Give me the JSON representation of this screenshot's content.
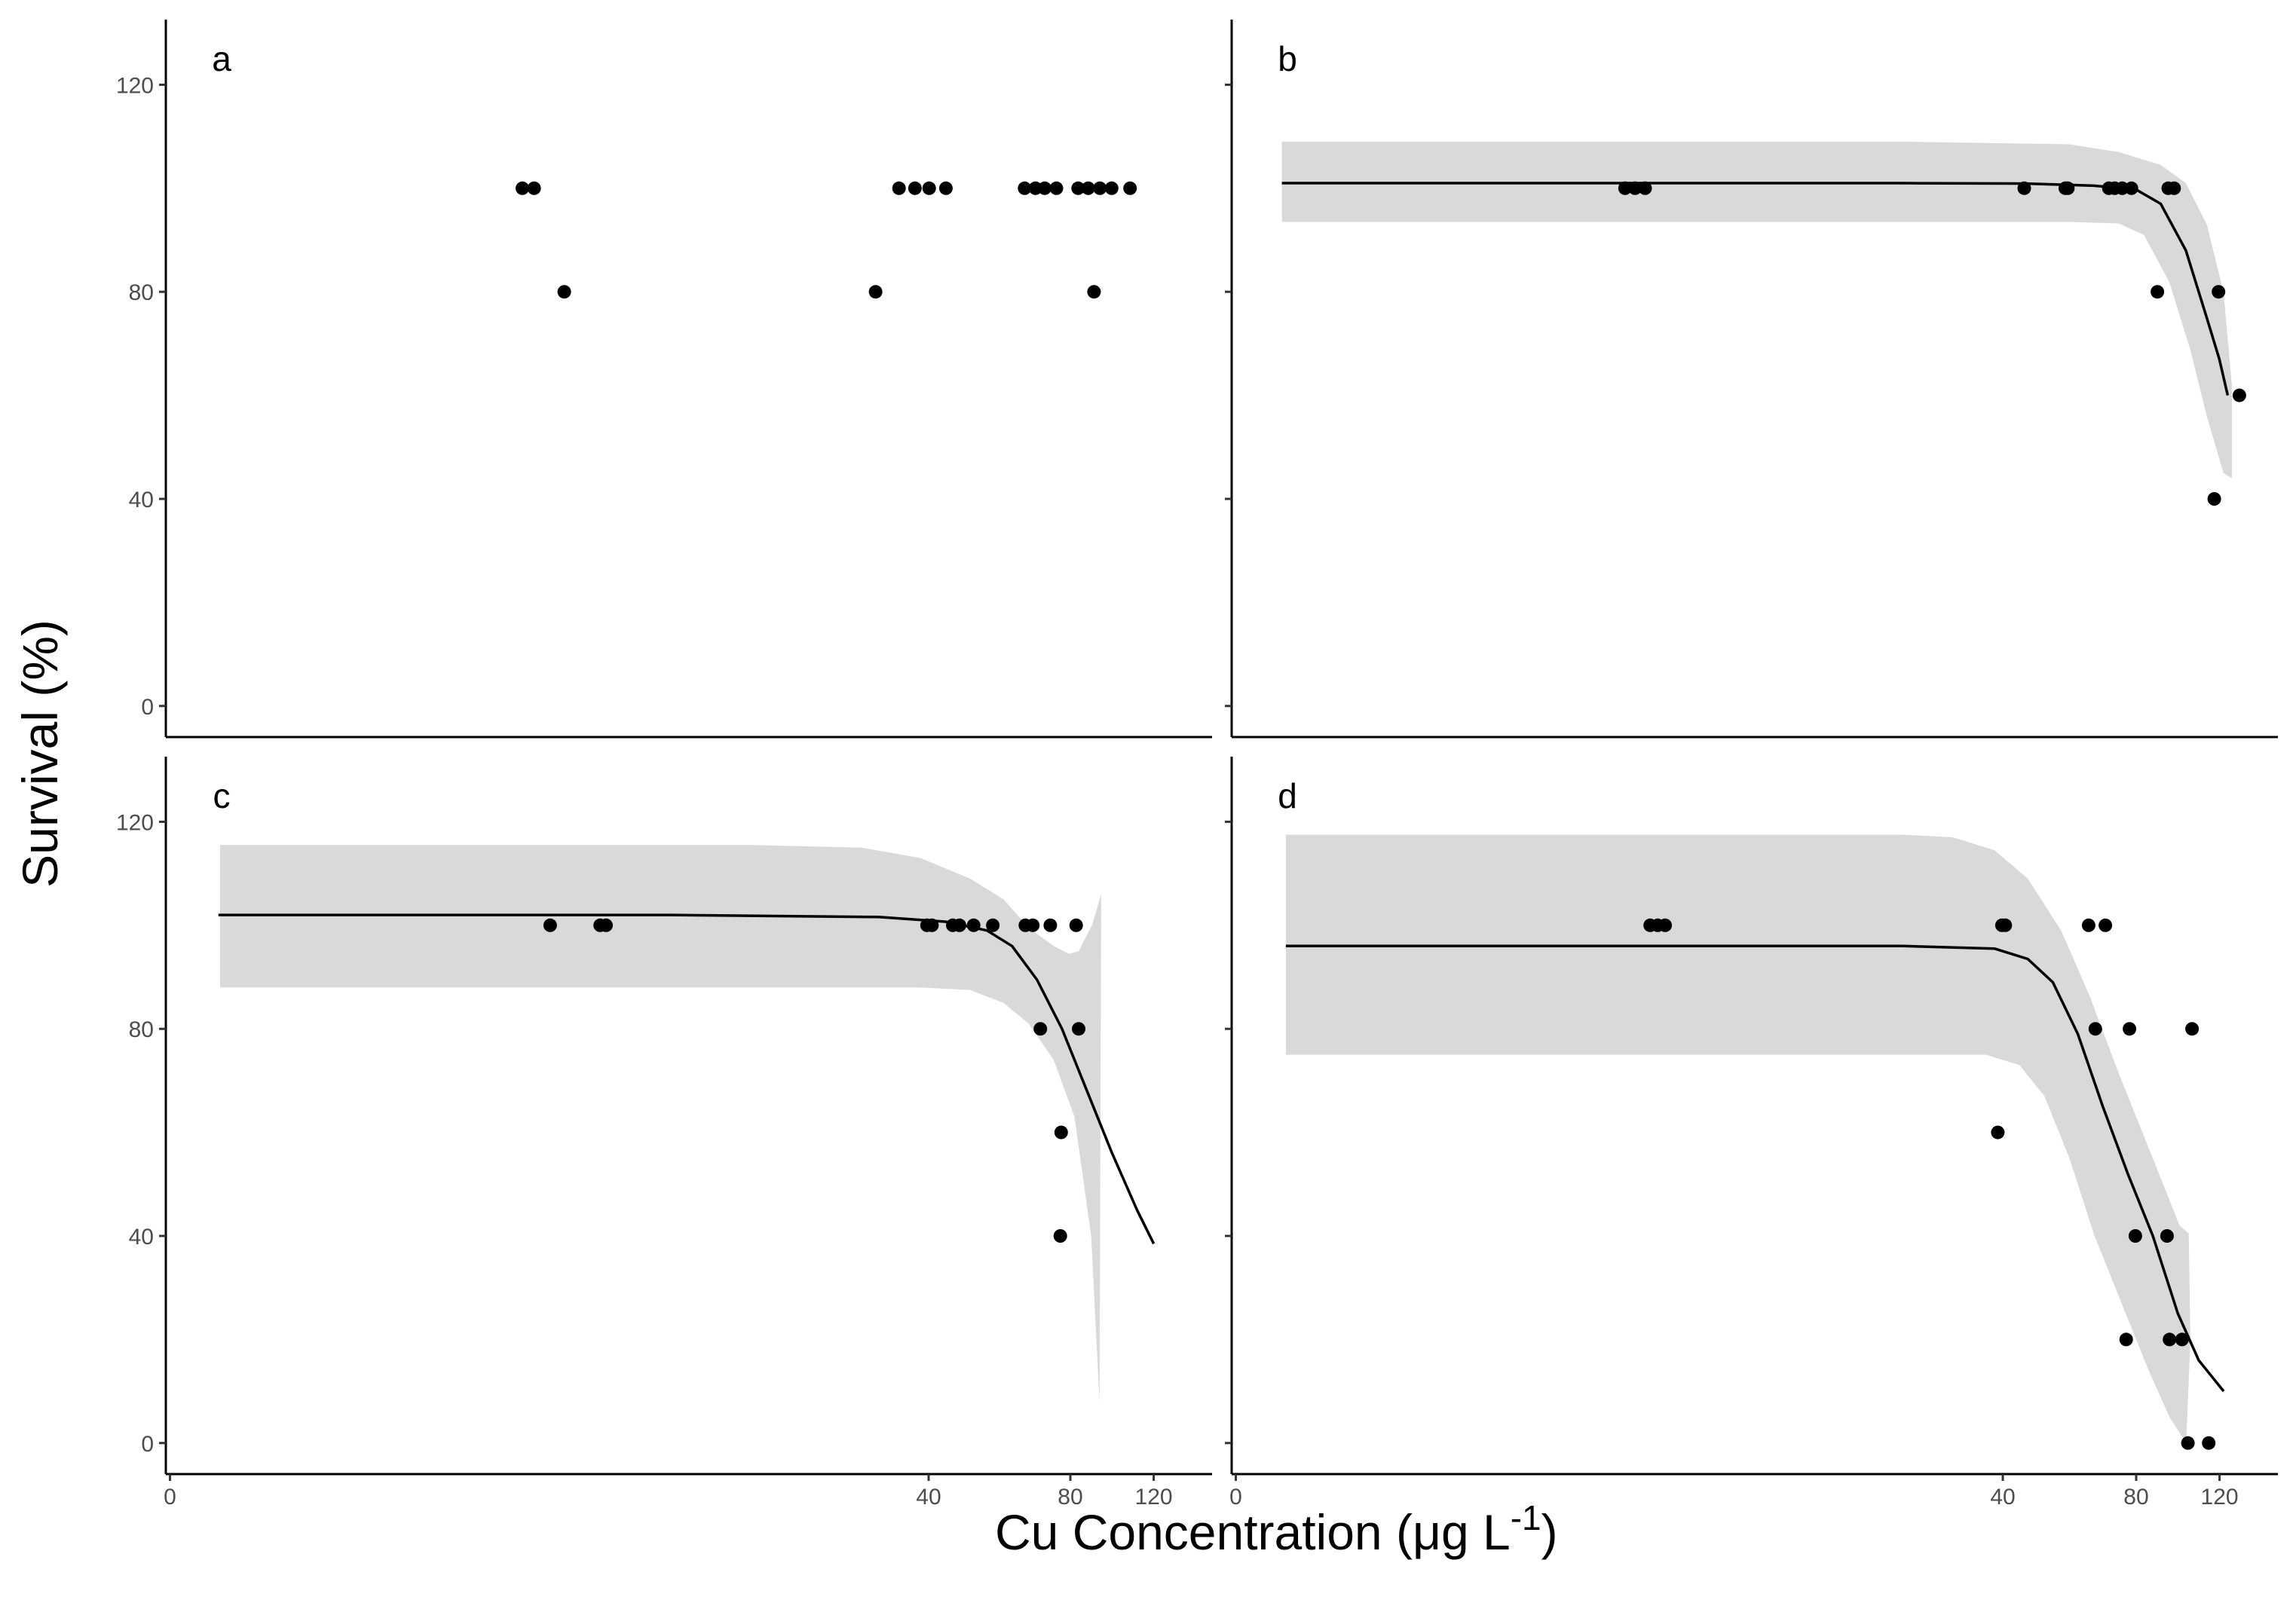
{
  "figure": {
    "ylabel": "Survival (%)",
    "xlabel": "Cu Concentration (μg L",
    "xlabel_sup": "-1",
    "xlabel_close": ")"
  },
  "chart_data": [
    {
      "panel": "a",
      "type": "scatter",
      "xlim": [
        0,
        125
      ],
      "ylim": [
        -6,
        132
      ],
      "yticks": [
        0,
        40,
        80,
        120
      ],
      "ytick_labels": [
        "0",
        "40",
        "80",
        "120"
      ],
      "xticks": [],
      "xtick_labels": [],
      "points": [
        {
          "x": 42.6,
          "y": 100
        },
        {
          "x": 44.0,
          "y": 100
        },
        {
          "x": 47.6,
          "y": 80
        },
        {
          "x": 84.8,
          "y": 80
        },
        {
          "x": 87.6,
          "y": 100
        },
        {
          "x": 89.5,
          "y": 100
        },
        {
          "x": 91.2,
          "y": 100
        },
        {
          "x": 93.2,
          "y": 100
        },
        {
          "x": 102.6,
          "y": 100
        },
        {
          "x": 103.9,
          "y": 100
        },
        {
          "x": 105.0,
          "y": 100
        },
        {
          "x": 106.4,
          "y": 100
        },
        {
          "x": 109.0,
          "y": 100
        },
        {
          "x": 110.2,
          "y": 100
        },
        {
          "x": 110.9,
          "y": 80
        },
        {
          "x": 111.6,
          "y": 100
        },
        {
          "x": 113.0,
          "y": 100
        },
        {
          "x": 115.2,
          "y": 100
        }
      ],
      "fit": null,
      "band": null
    },
    {
      "panel": "b",
      "type": "scatter",
      "xlim": [
        0,
        125
      ],
      "ylim": [
        -6,
        132
      ],
      "yticks": [
        0,
        40,
        80,
        120
      ],
      "ytick_labels": [
        "",
        "",
        "",
        ""
      ],
      "xticks": [],
      "xtick_labels": [],
      "points": [
        {
          "x": 47.0,
          "y": 100
        },
        {
          "x": 48.2,
          "y": 100
        },
        {
          "x": 49.4,
          "y": 100
        },
        {
          "x": 94.7,
          "y": 100
        },
        {
          "x": 99.6,
          "y": 100
        },
        {
          "x": 99.9,
          "y": 100
        },
        {
          "x": 104.8,
          "y": 100
        },
        {
          "x": 105.5,
          "y": 100
        },
        {
          "x": 106.4,
          "y": 100
        },
        {
          "x": 107.5,
          "y": 100
        },
        {
          "x": 110.6,
          "y": 80
        },
        {
          "x": 111.9,
          "y": 100
        },
        {
          "x": 112.6,
          "y": 100
        },
        {
          "x": 117.4,
          "y": 40
        },
        {
          "x": 117.9,
          "y": 80
        },
        {
          "x": 120.4,
          "y": 60
        }
      ],
      "fit": [
        {
          "x": 6,
          "y": 101
        },
        {
          "x": 40,
          "y": 101
        },
        {
          "x": 80,
          "y": 101
        },
        {
          "x": 95,
          "y": 100.9
        },
        {
          "x": 103,
          "y": 100.5
        },
        {
          "x": 108,
          "y": 99.8
        },
        {
          "x": 111,
          "y": 97
        },
        {
          "x": 114,
          "y": 88
        },
        {
          "x": 116.5,
          "y": 75
        },
        {
          "x": 118,
          "y": 67
        },
        {
          "x": 119,
          "y": 60
        }
      ],
      "band": {
        "upper": [
          {
            "x": 6,
            "y": 109
          },
          {
            "x": 80,
            "y": 109
          },
          {
            "x": 100,
            "y": 108.5
          },
          {
            "x": 106,
            "y": 107
          },
          {
            "x": 111,
            "y": 104.5
          },
          {
            "x": 114,
            "y": 101
          },
          {
            "x": 116.5,
            "y": 93
          },
          {
            "x": 118.5,
            "y": 80
          },
          {
            "x": 119.5,
            "y": 62
          }
        ],
        "lower": [
          {
            "x": 6,
            "y": 93.5
          },
          {
            "x": 80,
            "y": 93.5
          },
          {
            "x": 100,
            "y": 93.5
          },
          {
            "x": 106,
            "y": 93.2
          },
          {
            "x": 109,
            "y": 91
          },
          {
            "x": 112,
            "y": 82
          },
          {
            "x": 114.5,
            "y": 69
          },
          {
            "x": 116.5,
            "y": 56
          },
          {
            "x": 118.5,
            "y": 45
          },
          {
            "x": 119.5,
            "y": 44
          }
        ]
      }
    },
    {
      "panel": "c",
      "type": "scatter",
      "xlim": [
        -0.5,
        125
      ],
      "ylim": [
        -6,
        132
      ],
      "yticks": [
        0,
        40,
        80,
        120
      ],
      "ytick_labels": [
        "0",
        "40",
        "80",
        "120"
      ],
      "xticks": [
        0,
        40,
        80,
        120
      ],
      "xtick_labels": [
        "0",
        "40",
        "80",
        "120"
      ],
      "tick_positions": [
        0,
        91,
        108,
        118
      ],
      "points": [
        {
          "x": 45.6,
          "y": 100
        },
        {
          "x": 51.6,
          "y": 100
        },
        {
          "x": 52.3,
          "y": 100
        },
        {
          "x": 90.8,
          "y": 100
        },
        {
          "x": 91.4,
          "y": 100
        },
        {
          "x": 93.9,
          "y": 100
        },
        {
          "x": 94.7,
          "y": 100
        },
        {
          "x": 96.4,
          "y": 100
        },
        {
          "x": 98.7,
          "y": 100
        },
        {
          "x": 102.6,
          "y": 100
        },
        {
          "x": 103.5,
          "y": 100
        },
        {
          "x": 104.4,
          "y": 80
        },
        {
          "x": 105.6,
          "y": 100
        },
        {
          "x": 106.8,
          "y": 40
        },
        {
          "x": 106.9,
          "y": 60
        },
        {
          "x": 108.7,
          "y": 100
        },
        {
          "x": 109.0,
          "y": 80
        }
      ],
      "fit": [
        {
          "x": 5.8,
          "y": 102
        },
        {
          "x": 60,
          "y": 102
        },
        {
          "x": 85,
          "y": 101.6
        },
        {
          "x": 93,
          "y": 100.7
        },
        {
          "x": 98,
          "y": 99
        },
        {
          "x": 101,
          "y": 96
        },
        {
          "x": 104,
          "y": 89.5
        },
        {
          "x": 107,
          "y": 80
        },
        {
          "x": 110,
          "y": 68
        },
        {
          "x": 113,
          "y": 56
        },
        {
          "x": 116,
          "y": 45
        },
        {
          "x": 118,
          "y": 38.5
        }
      ],
      "band": {
        "upper": [
          {
            "x": 6,
            "y": 115.5
          },
          {
            "x": 70,
            "y": 115.5
          },
          {
            "x": 83,
            "y": 115
          },
          {
            "x": 90,
            "y": 113
          },
          {
            "x": 96,
            "y": 109
          },
          {
            "x": 100,
            "y": 105
          },
          {
            "x": 103,
            "y": 99.5
          },
          {
            "x": 106,
            "y": 96
          },
          {
            "x": 107.8,
            "y": 94.5
          },
          {
            "x": 109,
            "y": 95
          },
          {
            "x": 110.6,
            "y": 100
          },
          {
            "x": 111.7,
            "y": 106
          }
        ],
        "lower": [
          {
            "x": 6,
            "y": 88
          },
          {
            "x": 90,
            "y": 88
          },
          {
            "x": 96,
            "y": 87.5
          },
          {
            "x": 100,
            "y": 85
          },
          {
            "x": 103,
            "y": 81
          },
          {
            "x": 106,
            "y": 74
          },
          {
            "x": 108.5,
            "y": 63
          },
          {
            "x": 110.5,
            "y": 40
          },
          {
            "x": 111.5,
            "y": 8
          }
        ]
      }
    },
    {
      "panel": "d",
      "type": "scatter",
      "xlim": [
        -0.5,
        125
      ],
      "ylim": [
        -6,
        132
      ],
      "yticks": [
        0,
        40,
        80,
        120
      ],
      "ytick_labels": [
        "",
        "",
        "",
        ""
      ],
      "xticks": [
        0,
        40,
        80,
        120
      ],
      "xtick_labels": [
        "0",
        "40",
        "80",
        "120"
      ],
      "tick_positions": [
        0,
        92,
        108,
        118
      ],
      "points": [
        {
          "x": 49.7,
          "y": 100
        },
        {
          "x": 50.6,
          "y": 100
        },
        {
          "x": 51.5,
          "y": 100
        },
        {
          "x": 91.4,
          "y": 60
        },
        {
          "x": 91.9,
          "y": 100
        },
        {
          "x": 92.3,
          "y": 100
        },
        {
          "x": 102.3,
          "y": 100
        },
        {
          "x": 103.1,
          "y": 80
        },
        {
          "x": 104.3,
          "y": 100
        },
        {
          "x": 106.8,
          "y": 20
        },
        {
          "x": 107.2,
          "y": 80
        },
        {
          "x": 107.9,
          "y": 40
        },
        {
          "x": 111.7,
          "y": 40
        },
        {
          "x": 112.0,
          "y": 20
        },
        {
          "x": 113.5,
          "y": 20
        },
        {
          "x": 114.2,
          "y": 0
        },
        {
          "x": 114.7,
          "y": 80
        },
        {
          "x": 116.7,
          "y": 0
        }
      ],
      "fit": [
        {
          "x": 6,
          "y": 96
        },
        {
          "x": 80,
          "y": 96
        },
        {
          "x": 91,
          "y": 95.5
        },
        {
          "x": 95,
          "y": 93.5
        },
        {
          "x": 98,
          "y": 89
        },
        {
          "x": 101,
          "y": 79
        },
        {
          "x": 104,
          "y": 65
        },
        {
          "x": 107,
          "y": 52
        },
        {
          "x": 110,
          "y": 40
        },
        {
          "x": 113,
          "y": 25
        },
        {
          "x": 115.5,
          "y": 16
        },
        {
          "x": 118.5,
          "y": 10
        }
      ],
      "band": {
        "upper": [
          {
            "x": 6,
            "y": 117.5
          },
          {
            "x": 80,
            "y": 117.5
          },
          {
            "x": 86,
            "y": 117
          },
          {
            "x": 91,
            "y": 114.5
          },
          {
            "x": 95,
            "y": 109
          },
          {
            "x": 99,
            "y": 99
          },
          {
            "x": 102.5,
            "y": 86
          },
          {
            "x": 106,
            "y": 71
          },
          {
            "x": 110,
            "y": 55
          },
          {
            "x": 113.2,
            "y": 42
          },
          {
            "x": 114.3,
            "y": 40.5
          },
          {
            "x": 114.5,
            "y": 20
          }
        ],
        "lower": [
          {
            "x": 6,
            "y": 75
          },
          {
            "x": 90,
            "y": 75
          },
          {
            "x": 94,
            "y": 73
          },
          {
            "x": 97,
            "y": 67
          },
          {
            "x": 100,
            "y": 55
          },
          {
            "x": 103,
            "y": 40
          },
          {
            "x": 106.5,
            "y": 26
          },
          {
            "x": 109.5,
            "y": 14
          },
          {
            "x": 112,
            "y": 5
          },
          {
            "x": 114,
            "y": 0
          }
        ]
      }
    }
  ]
}
